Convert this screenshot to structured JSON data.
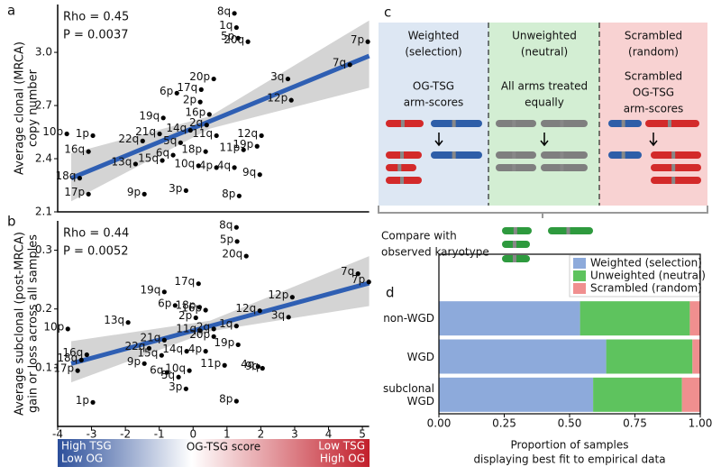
{
  "panel_labels": [
    "a",
    "b",
    "c",
    "d"
  ],
  "chart_data": [
    {
      "type": "scatter",
      "ylabel": [
        "Average clonal (MRCA)",
        "copy number"
      ],
      "annotations": [
        "Rho = 0.45",
        "P = 0.0037"
      ],
      "xlim": [
        -4,
        5.2
      ],
      "ylim": [
        2.1,
        3.27
      ],
      "yticks": [
        2.1,
        2.4,
        2.7,
        {
          "value": 3.0,
          "label": "3.0"
        }
      ],
      "color": "#000000",
      "fit_color": "#2f5fb3",
      "ci_color": "#d4d4d4",
      "labels": [
        "8q",
        "1q",
        "5p",
        "20q",
        "7p",
        "7q",
        "3q",
        "12p",
        "20p",
        "17q",
        "6p",
        "2p",
        "16p",
        "19q",
        "2q",
        "14q",
        "21q",
        "11q",
        "12q",
        "1p",
        "10p",
        "22q",
        "5q",
        "19p",
        "11p",
        "16q",
        "18p",
        "6q",
        "15q",
        "13q",
        "10q",
        "4p",
        "4q",
        "9q",
        "18q",
        "17p",
        "9p",
        "3p",
        "8p"
      ],
      "x": [
        1.22,
        1.28,
        1.33,
        1.62,
        5.16,
        4.63,
        2.8,
        2.9,
        0.61,
        0.24,
        -0.48,
        0.21,
        0.48,
        -0.88,
        0.4,
        -0.08,
        -0.99,
        0.69,
        2.02,
        -2.96,
        -3.73,
        -1.49,
        -0.37,
        1.89,
        1.49,
        -3.09,
        0.37,
        -0.59,
        -0.91,
        -1.7,
        0.16,
        0.69,
        1.22,
        1.97,
        -3.35,
        -3.09,
        -1.44,
        -0.21,
        1.36
      ],
      "values": [
        3.22,
        3.14,
        3.08,
        3.06,
        3.06,
        2.93,
        2.85,
        2.73,
        2.85,
        2.79,
        2.77,
        2.72,
        2.65,
        2.63,
        2.59,
        2.56,
        2.54,
        2.53,
        2.53,
        2.53,
        2.54,
        2.5,
        2.49,
        2.47,
        2.45,
        2.44,
        2.44,
        2.42,
        2.39,
        2.37,
        2.36,
        2.35,
        2.35,
        2.31,
        2.29,
        2.2,
        2.2,
        2.22,
        2.19
      ],
      "fit": {
        "x": [
          -3.6,
          5.2
        ],
        "y": [
          2.29,
          2.98
        ]
      },
      "ci": {
        "x": [
          -3.6,
          0.5,
          5.2
        ],
        "lower": [
          2.16,
          2.57,
          2.8
        ],
        "upper": [
          2.43,
          2.64,
          3.18
        ]
      }
    },
    {
      "type": "scatter",
      "ylabel": [
        "Average subclonal (post-MRCA)",
        "gain or loss across all samples"
      ],
      "annotations": [
        "Rho = 0.44",
        "P = 0.0052"
      ],
      "xlim": [
        -4,
        5.2
      ],
      "ylim": [
        0,
        0.35
      ],
      "xticks": [
        -4,
        -3,
        -2,
        -1,
        0,
        1,
        2,
        3,
        4,
        5
      ],
      "yticks": [
        0.1,
        0.2,
        0.3
      ],
      "xlabel": "OG-TSG score",
      "colorbar_left": [
        "High TSG",
        "Low OG"
      ],
      "colorbar_right": [
        "Low TSG",
        "High OG"
      ],
      "color": "#000000",
      "fit_color": "#2f5fb3",
      "ci_color": "#d4d4d4",
      "labels": [
        "8q",
        "5p",
        "20q",
        "7q",
        "7p",
        "17q",
        "19q",
        "12p",
        "6p",
        "18p",
        "16p",
        "12q",
        "2p",
        "3q",
        "13q",
        "10p",
        "11q",
        "1q",
        "2q",
        "20p",
        "21q",
        "19p",
        "22q",
        "15q",
        "14q",
        "4p",
        "11p",
        "4q",
        "9q",
        "16q",
        "18q",
        "17p",
        "9p",
        "6q",
        "10q",
        "5q",
        "3p",
        "1p",
        "8p"
      ],
      "x": [
        1.28,
        1.3,
        1.57,
        4.87,
        5.19,
        0.16,
        -0.85,
        2.93,
        -0.53,
        0.19,
        0.37,
        1.97,
        0.08,
        2.82,
        -1.92,
        -3.7,
        0.21,
        1.28,
        0.61,
        0.61,
        -0.85,
        1.33,
        -1.3,
        -0.93,
        -0.19,
        0.37,
        0.93,
        1.92,
        2.05,
        -3.14,
        -3.3,
        -3.41,
        -1.44,
        -0.77,
        -0.11,
        -0.43,
        -0.21,
        -2.96,
        1.28
      ],
      "values": [
        0.339,
        0.315,
        0.29,
        0.26,
        0.246,
        0.243,
        0.229,
        0.22,
        0.206,
        0.203,
        0.198,
        0.197,
        0.185,
        0.186,
        0.177,
        0.166,
        0.163,
        0.171,
        0.166,
        0.153,
        0.147,
        0.139,
        0.133,
        0.121,
        0.128,
        0.128,
        0.104,
        0.102,
        0.099,
        0.122,
        0.113,
        0.095,
        0.107,
        0.092,
        0.095,
        0.084,
        0.064,
        0.041,
        0.043
      ],
      "fit": {
        "x": [
          -3.6,
          5.2
        ],
        "y": [
          0.107,
          0.244
        ]
      },
      "ci": {
        "x": [
          -3.6,
          0.5,
          5.2
        ],
        "lower": [
          0.075,
          0.162,
          0.205
        ],
        "upper": [
          0.145,
          0.18,
          0.29
        ]
      }
    },
    {
      "type": "stacked-bar",
      "categories": [
        "non-WGD",
        "WGD",
        "subclonal WGD"
      ],
      "series": [
        {
          "name": "Weighted (selection)",
          "color": "#8daadb",
          "values": [
            0.54,
            0.64,
            0.59
          ]
        },
        {
          "name": "Unweighted (neutral)",
          "color": "#5ec35e",
          "values": [
            0.42,
            0.33,
            0.34
          ]
        },
        {
          "name": "Scrambled (random)",
          "color": "#f08f8f",
          "values": [
            0.04,
            0.03,
            0.07
          ]
        }
      ],
      "xlim": [
        0,
        1.0
      ],
      "xticks": [
        {
          "value": 0,
          "label": "0.00"
        },
        {
          "value": 0.25,
          "label": "0.25"
        },
        {
          "value": 0.5,
          "label": "0.50"
        },
        {
          "value": 0.75,
          "label": "0.75"
        },
        {
          "value": 1.0,
          "label": "1.00"
        }
      ],
      "xlabel": [
        "Proportion of samples",
        "displaying best fit to empirical data"
      ]
    }
  ],
  "diagram": {
    "columns": [
      {
        "title": [
          "Weighted",
          "(selection)"
        ],
        "text": [
          "OG-TSG",
          "arm-scores"
        ]
      },
      {
        "title": [
          "Unweighted",
          "(neutral)"
        ],
        "text": [
          "All arms treated",
          "equally"
        ]
      },
      {
        "title": [
          "Scrambled",
          "(random)"
        ],
        "text": [
          "Scrambled",
          "OG-TSG",
          "arm-scores"
        ]
      }
    ],
    "footer": [
      "Compare with",
      "observed karyotype"
    ]
  }
}
